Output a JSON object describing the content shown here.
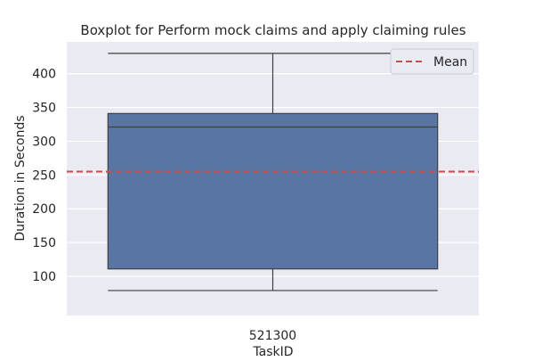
{
  "chart_data": {
    "type": "box",
    "title": "Boxplot for Perform mock claims and apply claiming rules",
    "xlabel": "TaskID",
    "ylabel": "Duration in Seconds",
    "categories": [
      "521300"
    ],
    "boxes": [
      {
        "category": "521300",
        "whisker_low": 79,
        "q1": 111,
        "median": 321,
        "q3": 341,
        "whisker_high": 430
      }
    ],
    "mean": 255,
    "mean_label": "Mean",
    "yticks": [
      100,
      150,
      200,
      250,
      300,
      350,
      400
    ],
    "ylim": [
      42,
      447
    ],
    "grid": true,
    "legend_position": "top-right",
    "colors": {
      "plot_bg": "#EAEAF2",
      "box_fill": "#5875A4",
      "box_edge": "#3f3f3f",
      "mean_line": "#C44E52",
      "grid": "#ffffff",
      "text": "#262626"
    }
  }
}
